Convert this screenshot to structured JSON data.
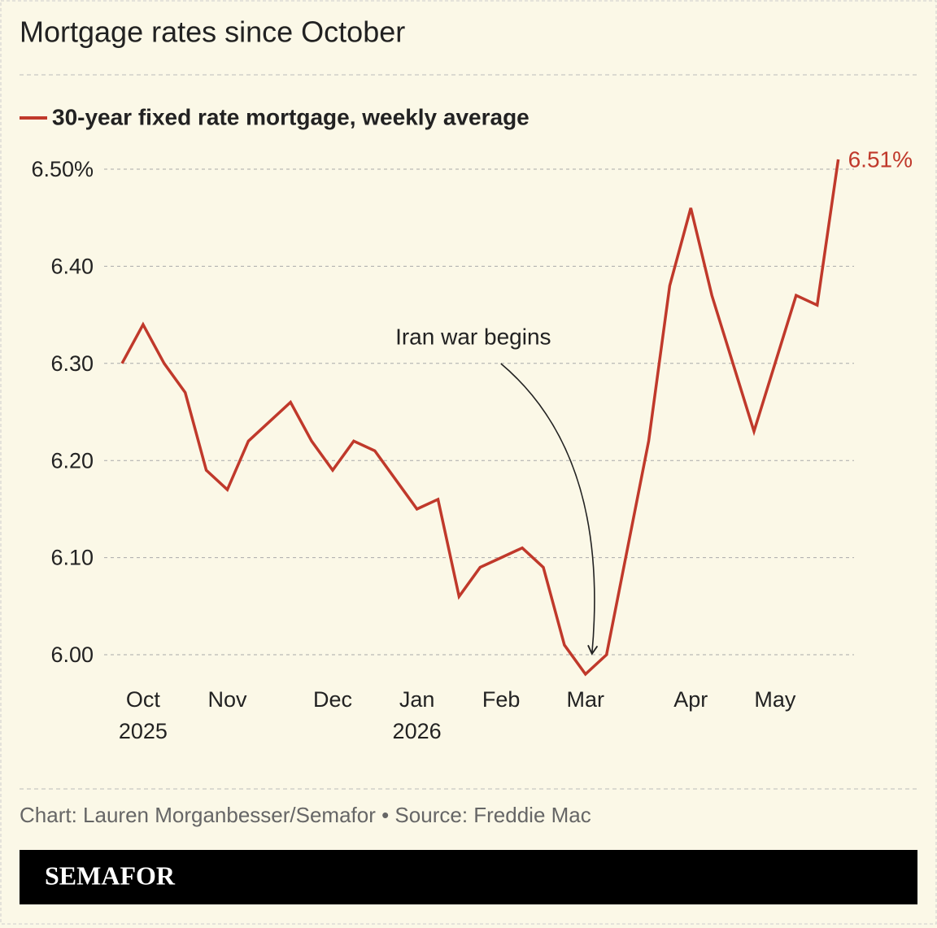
{
  "chart_data": {
    "type": "line",
    "title": "Mortgage rates since October",
    "categories": [
      null,
      "Oct 2025",
      null,
      null,
      null,
      "Nov",
      null,
      null,
      null,
      null,
      "Dec",
      null,
      null,
      null,
      "Jan 2026",
      null,
      null,
      null,
      "Feb",
      null,
      null,
      null,
      "Mar",
      null,
      null,
      null,
      null,
      "Apr",
      null,
      null,
      null,
      "May",
      null,
      null,
      null
    ],
    "series": [
      {
        "name": "30-year fixed rate mortgage, weekly average",
        "color": "#c0392b",
        "values": [
          6.3,
          6.34,
          6.3,
          6.27,
          6.19,
          6.17,
          6.22,
          6.24,
          6.26,
          6.22,
          6.19,
          6.22,
          6.21,
          6.18,
          6.15,
          6.16,
          6.06,
          6.09,
          6.1,
          6.11,
          6.09,
          6.01,
          5.98,
          6.0,
          6.11,
          6.22,
          6.38,
          6.46,
          6.37,
          6.3,
          6.23,
          6.3,
          6.37,
          6.36,
          6.51
        ],
        "value_labels": [
          null,
          null,
          null,
          null,
          null,
          null,
          null,
          null,
          null,
          null,
          null,
          null,
          null,
          null,
          null,
          null,
          null,
          null,
          null,
          null,
          null,
          null,
          null,
          null,
          null,
          null,
          null,
          null,
          null,
          null,
          null,
          null,
          null,
          null,
          "6.51%"
        ]
      }
    ],
    "ylim": [
      6.0,
      6.5
    ],
    "yticks": [
      {
        "value": 6.0,
        "label": "6.00"
      },
      {
        "value": 6.1,
        "label": "6.10"
      },
      {
        "value": 6.2,
        "label": "6.20"
      },
      {
        "value": 6.3,
        "label": "6.30"
      },
      {
        "value": 6.4,
        "label": "6.40"
      },
      {
        "value": 6.5,
        "label": "6.50%"
      }
    ],
    "grid": true,
    "annotation": {
      "text": "Iran war begins",
      "index": 22
    }
  },
  "footer": {
    "source": "Chart: Lauren Morganbesser/Semafor • Source: Freddie Mac",
    "brand": "SEMAFOR"
  }
}
